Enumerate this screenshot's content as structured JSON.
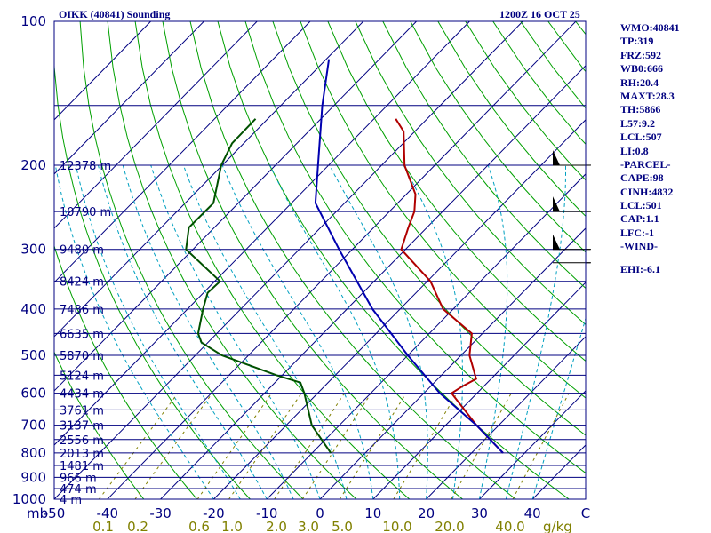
{
  "header": {
    "station": "OIKK (40841) Sounding",
    "time": "1200Z 16 OCT 25"
  },
  "indices": [
    "WMO:40841",
    "TP:319",
    "FRZ:592",
    "WB0:666",
    "RH:20.4",
    "MAXT:28.3",
    "TH:5866",
    "L57:9.2",
    "LCL:507",
    "LI:0.8",
    "-PARCEL-",
    "CAPE:98",
    "CINH:4832",
    "LCL:501",
    "CAP:1.1",
    "LFC:-1",
    "-WIND-",
    "",
    "EHI:-6.1"
  ],
  "colors": {
    "frame": "#000080",
    "isobar": "#000080",
    "isotherm": "#000080",
    "dry_adiabat": "#00a000",
    "moist_adiabat": "#00a0c0",
    "mixing_ratio": "#808000",
    "temperature": "#b00000",
    "dewpoint": "#005000",
    "parcel": "#0000b0",
    "wind": "#000000"
  },
  "chart_data": {
    "type": "skew-t",
    "title": "OIKK (40841) Sounding",
    "xlabel": "C",
    "ylabel": "mb",
    "x_unit": "C",
    "y_unit": "mb",
    "mixing_unit": "g/kg",
    "xlim": [
      -50,
      50
    ],
    "ylim": [
      1000,
      100
    ],
    "pressure_ticks": [
      100,
      200,
      300,
      400,
      500,
      600,
      700,
      800,
      900,
      1000
    ],
    "temperature_ticks": [
      "-50",
      "-40",
      "-30",
      "-20",
      "-10",
      "0",
      "10",
      "20",
      "30",
      "40",
      "C"
    ],
    "mixing_ratio_labels": [
      "0.1",
      "0.2",
      "0.6",
      "1.0",
      "2.0",
      "3.0",
      "5.0",
      "10.0",
      "20.0",
      "40.0"
    ],
    "height_levels": [
      {
        "p": 200,
        "label": "12378 m"
      },
      {
        "p": 250,
        "label": "10790 m"
      },
      {
        "p": 300,
        "label": "9480 m"
      },
      {
        "p": 350,
        "label": "8424 m"
      },
      {
        "p": 400,
        "label": "7486 m"
      },
      {
        "p": 450,
        "label": "6635 m"
      },
      {
        "p": 500,
        "label": "5870 m"
      },
      {
        "p": 550,
        "label": "5124 m"
      },
      {
        "p": 600,
        "label": "4434 m"
      },
      {
        "p": 650,
        "label": "3761 m"
      },
      {
        "p": 700,
        "label": "3137 m"
      },
      {
        "p": 750,
        "label": "2556 m"
      },
      {
        "p": 800,
        "label": "2013 m"
      },
      {
        "p": 850,
        "label": "1481 m"
      },
      {
        "p": 900,
        "label": "966 m"
      },
      {
        "p": 950,
        "label": "474 m"
      },
      {
        "p": 1000,
        "label": "4 m"
      }
    ],
    "series": [
      {
        "name": "Temperature",
        "points": [
          {
            "p": 800,
            "t": 25.9
          },
          {
            "p": 700,
            "t": 15.8
          },
          {
            "p": 600,
            "t": 5.2
          },
          {
            "p": 580,
            "t": 6.0
          },
          {
            "p": 560,
            "t": 7.2
          },
          {
            "p": 500,
            "t": 1.6
          },
          {
            "p": 450,
            "t": -2.0
          },
          {
            "p": 400,
            "t": -11.9
          },
          {
            "p": 350,
            "t": -19.4
          },
          {
            "p": 300,
            "t": -30.8
          },
          {
            "p": 270,
            "t": -33.5
          },
          {
            "p": 250,
            "t": -35.3
          },
          {
            "p": 230,
            "t": -38.3
          },
          {
            "p": 200,
            "t": -45.7
          },
          {
            "p": 170,
            "t": -52.1
          },
          {
            "p": 160,
            "t": -55.9
          }
        ]
      },
      {
        "name": "Dewpoint",
        "points": [
          {
            "p": 800,
            "t": -6.5
          },
          {
            "p": 700,
            "t": -15.2
          },
          {
            "p": 600,
            "t": -22.5
          },
          {
            "p": 570,
            "t": -25.2
          },
          {
            "p": 550,
            "t": -31.1
          },
          {
            "p": 500,
            "t": -45.0
          },
          {
            "p": 470,
            "t": -51.2
          },
          {
            "p": 450,
            "t": -53.5
          },
          {
            "p": 400,
            "t": -57.1
          },
          {
            "p": 370,
            "t": -59.2
          },
          {
            "p": 350,
            "t": -59.0
          },
          {
            "p": 300,
            "t": -71.3
          },
          {
            "p": 270,
            "t": -74.8
          },
          {
            "p": 240,
            "t": -74.7
          },
          {
            "p": 200,
            "t": -80.2
          },
          {
            "p": 180,
            "t": -82.2
          },
          {
            "p": 160,
            "t": -82.3
          }
        ]
      },
      {
        "name": "Parcel",
        "points": [
          {
            "p": 800,
            "t": 25.9
          },
          {
            "p": 700,
            "t": 15.8
          },
          {
            "p": 600,
            "t": 3.0
          },
          {
            "p": 500,
            "t": -10.0
          },
          {
            "p": 400,
            "t": -25.2
          },
          {
            "p": 300,
            "t": -42.5
          },
          {
            "p": 240,
            "t": -55.5
          },
          {
            "p": 200,
            "t": -62.0
          },
          {
            "p": 150,
            "t": -72.2
          },
          {
            "p": 120,
            "t": -79.5
          }
        ]
      }
    ],
    "winds": [
      {
        "p": 200,
        "barbs": 1
      },
      {
        "p": 250,
        "barbs": 1
      },
      {
        "p": 300,
        "barbs": 1
      },
      {
        "p": 320,
        "barbs": 0
      }
    ]
  }
}
